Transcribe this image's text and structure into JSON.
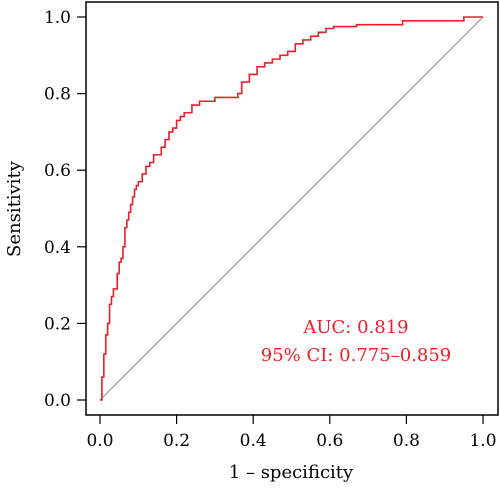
{
  "chart_data": {
    "type": "line",
    "title": "",
    "xlabel": "1 – specificity",
    "ylabel": "Sensitivity",
    "xlim": [
      0,
      1
    ],
    "ylim": [
      0,
      1
    ],
    "xticks": [
      "0.0",
      "0.2",
      "0.4",
      "0.6",
      "0.8",
      "1.0"
    ],
    "yticks": [
      "0.0",
      "0.2",
      "0.4",
      "0.6",
      "0.8",
      "1.0"
    ],
    "grid": false,
    "legend": "none",
    "colors": {
      "roc": "#e8202a",
      "reference": "#999999",
      "annotation": "#e8202a"
    },
    "annotations": [
      "AUC: 0.819",
      "95% CI: 0.775–0.859"
    ],
    "series": [
      {
        "name": "",
        "type": "step",
        "x": [
          0.0,
          0.005,
          0.005,
          0.01,
          0.01,
          0.015,
          0.015,
          0.02,
          0.02,
          0.025,
          0.025,
          0.03,
          0.03,
          0.035,
          0.035,
          0.045,
          0.045,
          0.05,
          0.05,
          0.055,
          0.055,
          0.06,
          0.06,
          0.065,
          0.065,
          0.07,
          0.07,
          0.075,
          0.075,
          0.08,
          0.08,
          0.085,
          0.085,
          0.09,
          0.09,
          0.095,
          0.095,
          0.1,
          0.1,
          0.11,
          0.11,
          0.12,
          0.12,
          0.13,
          0.13,
          0.14,
          0.14,
          0.16,
          0.16,
          0.17,
          0.17,
          0.18,
          0.18,
          0.19,
          0.19,
          0.2,
          0.2,
          0.21,
          0.21,
          0.22,
          0.22,
          0.24,
          0.24,
          0.26,
          0.26,
          0.28,
          0.28,
          0.3,
          0.3,
          0.33,
          0.33,
          0.36,
          0.36,
          0.37,
          0.37,
          0.39,
          0.39,
          0.41,
          0.41,
          0.43,
          0.43,
          0.45,
          0.45,
          0.47,
          0.47,
          0.49,
          0.49,
          0.51,
          0.51,
          0.53,
          0.53,
          0.55,
          0.55,
          0.57,
          0.57,
          0.59,
          0.59,
          0.61,
          0.61,
          0.67,
          0.67,
          0.79,
          0.79,
          0.95,
          0.95,
          1.0
        ],
        "y": [
          0.0,
          0.0,
          0.06,
          0.06,
          0.12,
          0.12,
          0.17,
          0.17,
          0.2,
          0.2,
          0.25,
          0.25,
          0.27,
          0.27,
          0.29,
          0.29,
          0.33,
          0.33,
          0.36,
          0.36,
          0.37,
          0.37,
          0.4,
          0.4,
          0.45,
          0.45,
          0.47,
          0.47,
          0.49,
          0.49,
          0.51,
          0.51,
          0.53,
          0.53,
          0.55,
          0.55,
          0.56,
          0.56,
          0.57,
          0.57,
          0.59,
          0.59,
          0.61,
          0.61,
          0.62,
          0.62,
          0.64,
          0.64,
          0.66,
          0.66,
          0.68,
          0.68,
          0.7,
          0.7,
          0.71,
          0.71,
          0.73,
          0.73,
          0.74,
          0.74,
          0.75,
          0.75,
          0.77,
          0.77,
          0.78,
          0.78,
          0.78,
          0.78,
          0.79,
          0.79,
          0.79,
          0.79,
          0.8,
          0.8,
          0.83,
          0.83,
          0.85,
          0.85,
          0.87,
          0.87,
          0.88,
          0.88,
          0.89,
          0.89,
          0.9,
          0.9,
          0.91,
          0.91,
          0.93,
          0.93,
          0.94,
          0.94,
          0.95,
          0.95,
          0.96,
          0.96,
          0.97,
          0.97,
          0.975,
          0.975,
          0.98,
          0.98,
          0.99,
          0.99,
          1.0,
          1.0
        ]
      },
      {
        "name": "",
        "type": "reference",
        "x": [
          0,
          1
        ],
        "y": [
          0,
          1
        ]
      }
    ]
  }
}
